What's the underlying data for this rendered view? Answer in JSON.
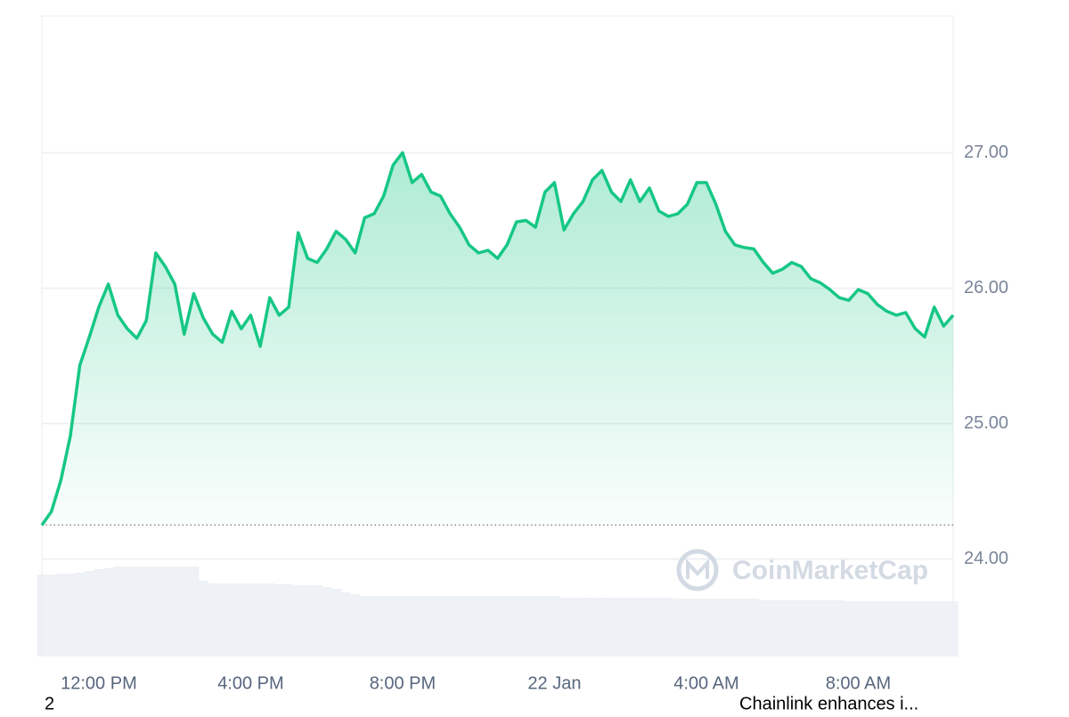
{
  "chart_data": {
    "type": "line",
    "categories": [
      null,
      null,
      null,
      null,
      null,
      null,
      "12:00 PM",
      null,
      null,
      null,
      null,
      null,
      null,
      null,
      null,
      null,
      null,
      null,
      null,
      null,
      null,
      null,
      "4:00 PM",
      null,
      null,
      null,
      null,
      null,
      null,
      null,
      null,
      null,
      null,
      null,
      null,
      null,
      null,
      null,
      "8:00 PM",
      null,
      null,
      null,
      null,
      null,
      null,
      null,
      null,
      null,
      null,
      null,
      null,
      null,
      null,
      null,
      "22 Jan",
      null,
      null,
      null,
      null,
      null,
      null,
      null,
      null,
      null,
      null,
      null,
      null,
      null,
      null,
      null,
      "4:00 AM",
      null,
      null,
      null,
      null,
      null,
      null,
      null,
      null,
      null,
      null,
      null,
      null,
      null,
      null,
      null,
      "8:00 AM",
      null,
      null,
      null,
      null,
      null,
      null,
      null,
      null,
      null,
      null
    ],
    "series": [
      {
        "color": "#16c784",
        "values": [
          24.25,
          24.35,
          24.58,
          24.91,
          25.43,
          25.64,
          25.86,
          26.03,
          25.8,
          25.7,
          25.63,
          25.76,
          26.26,
          26.16,
          26.03,
          25.66,
          25.96,
          25.78,
          25.66,
          25.6,
          25.83,
          25.7,
          25.8,
          25.57,
          25.93,
          25.8,
          25.86,
          26.41,
          26.22,
          26.19,
          26.29,
          26.42,
          26.36,
          26.26,
          26.52,
          26.55,
          26.68,
          26.91,
          27.0,
          26.78,
          26.84,
          26.71,
          26.68,
          26.55,
          26.45,
          26.32,
          26.26,
          26.28,
          26.22,
          26.32,
          26.49,
          26.5,
          26.45,
          26.71,
          26.78,
          26.43,
          26.55,
          26.64,
          26.8,
          26.87,
          26.71,
          26.64,
          26.8,
          26.64,
          26.74,
          26.57,
          26.53,
          26.55,
          26.62,
          26.78,
          26.78,
          26.62,
          26.42,
          26.32,
          26.3,
          26.29,
          26.19,
          26.11,
          26.14,
          26.19,
          26.16,
          26.07,
          26.04,
          25.99,
          25.93,
          25.91,
          25.99,
          25.96,
          25.88,
          25.83,
          25.8,
          25.82,
          25.7,
          25.64,
          25.86,
          25.72,
          25.8
        ]
      }
    ],
    "volume": {
      "color": "#eef1f5",
      "values": [
        92,
        92,
        93,
        93,
        94,
        96,
        98,
        99,
        101,
        101,
        101,
        101,
        101,
        101,
        101,
        101,
        101,
        85,
        82,
        82,
        82,
        82,
        82,
        82,
        82,
        81,
        81,
        80,
        80,
        80,
        78,
        76,
        72,
        70,
        68,
        68,
        68,
        68,
        68,
        68,
        68,
        68,
        68,
        68,
        68,
        68,
        68,
        68,
        68,
        68,
        68,
        68,
        68,
        68,
        68,
        66,
        66,
        66,
        66,
        66,
        66,
        66,
        66,
        66,
        66,
        66,
        66,
        65,
        65,
        65,
        65,
        65,
        65,
        65,
        65,
        65,
        63,
        63,
        63,
        63,
        63,
        63,
        63,
        63,
        63,
        62,
        62,
        62,
        62,
        62,
        62,
        62,
        62,
        62,
        62,
        62,
        62
      ]
    },
    "baseline": 24.25,
    "ylim": [
      23.28,
      28.01
    ],
    "yticks": [
      {
        "value": 24,
        "label": "24.00"
      },
      {
        "value": 25,
        "label": "25.00"
      },
      {
        "value": 26,
        "label": "26.00"
      },
      {
        "value": 27,
        "label": "27.00"
      }
    ],
    "grid": true,
    "watermark": "CoinMarketCap"
  },
  "footer": {
    "left": "2",
    "right": "Chainlink enhances i..."
  }
}
